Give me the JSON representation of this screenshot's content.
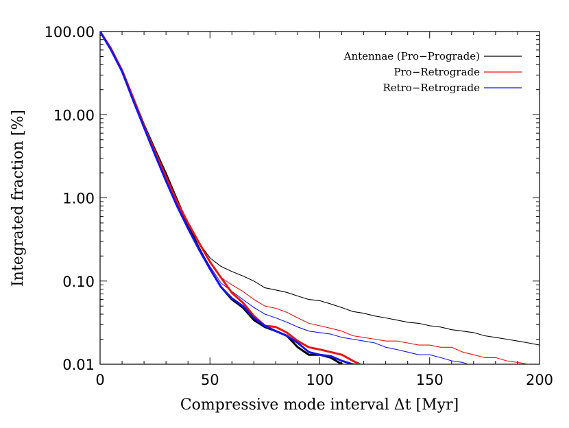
{
  "chart_data": {
    "type": "line",
    "xlabel": "Compressive mode interval Δt [Myr]",
    "ylabel": "Integrated fraction [%]",
    "xlim": [
      0,
      200
    ],
    "ylim": [
      0.01,
      100
    ],
    "yscale": "log",
    "x_ticks": [
      {
        "value": 0,
        "label": "0"
      },
      {
        "value": 50,
        "label": "50"
      },
      {
        "value": 100,
        "label": "100"
      },
      {
        "value": 150,
        "label": "150"
      },
      {
        "value": 200,
        "label": "200"
      }
    ],
    "y_ticks": [
      {
        "value": 100,
        "label": "100.00"
      },
      {
        "value": 10,
        "label": "10.00"
      },
      {
        "value": 1,
        "label": "1.00"
      },
      {
        "value": 0.1,
        "label": "0.10"
      },
      {
        "value": 0.01,
        "label": "0.01"
      }
    ],
    "legend_position": "top-right",
    "legend": [
      {
        "label": "Antennae (Pro−Prograde)",
        "color": "#000000"
      },
      {
        "label": "Pro−Retrograde",
        "color": "#ee1111"
      },
      {
        "label": "Retro−Retrograde",
        "color": "#1515ee"
      }
    ],
    "series": [
      {
        "color": "#000000",
        "style": "thin",
        "points": [
          [
            0,
            100
          ],
          [
            5,
            62
          ],
          [
            10,
            34
          ],
          [
            15,
            16
          ],
          [
            20,
            7.5
          ],
          [
            25,
            3.8
          ],
          [
            30,
            1.9
          ],
          [
            35,
            0.95
          ],
          [
            40,
            0.5
          ],
          [
            45,
            0.29
          ],
          [
            50,
            0.19
          ],
          [
            55,
            0.15
          ],
          [
            60,
            0.13
          ],
          [
            65,
            0.115
          ],
          [
            70,
            0.1
          ],
          [
            75,
            0.083
          ],
          [
            80,
            0.078
          ],
          [
            85,
            0.073
          ],
          [
            90,
            0.066
          ],
          [
            95,
            0.06
          ],
          [
            100,
            0.058
          ],
          [
            105,
            0.053
          ],
          [
            110,
            0.048
          ],
          [
            115,
            0.043
          ],
          [
            120,
            0.041
          ],
          [
            125,
            0.038
          ],
          [
            130,
            0.036
          ],
          [
            135,
            0.034
          ],
          [
            140,
            0.032
          ],
          [
            145,
            0.031
          ],
          [
            150,
            0.029
          ],
          [
            155,
            0.028
          ],
          [
            160,
            0.026
          ],
          [
            165,
            0.025
          ],
          [
            170,
            0.024
          ],
          [
            175,
            0.022
          ],
          [
            180,
            0.021
          ],
          [
            185,
            0.02
          ],
          [
            190,
            0.019
          ],
          [
            195,
            0.018
          ],
          [
            200,
            0.017
          ]
        ]
      },
      {
        "color": "#ee1111",
        "style": "thin",
        "points": [
          [
            0,
            100
          ],
          [
            5,
            62
          ],
          [
            10,
            34
          ],
          [
            15,
            16
          ],
          [
            20,
            7.5
          ],
          [
            25,
            3.7
          ],
          [
            30,
            1.85
          ],
          [
            35,
            0.92
          ],
          [
            40,
            0.5
          ],
          [
            45,
            0.29
          ],
          [
            50,
            0.17
          ],
          [
            55,
            0.11
          ],
          [
            60,
            0.09
          ],
          [
            65,
            0.075
          ],
          [
            70,
            0.06
          ],
          [
            75,
            0.05
          ],
          [
            80,
            0.047
          ],
          [
            85,
            0.042
          ],
          [
            90,
            0.036
          ],
          [
            95,
            0.031
          ],
          [
            100,
            0.029
          ],
          [
            105,
            0.027
          ],
          [
            110,
            0.025
          ],
          [
            115,
            0.022
          ],
          [
            120,
            0.021
          ],
          [
            125,
            0.02
          ],
          [
            130,
            0.019
          ],
          [
            135,
            0.019
          ],
          [
            140,
            0.018
          ],
          [
            145,
            0.017
          ],
          [
            150,
            0.017
          ],
          [
            155,
            0.016
          ],
          [
            160,
            0.016
          ],
          [
            165,
            0.014
          ],
          [
            170,
            0.013
          ],
          [
            175,
            0.012
          ],
          [
            180,
            0.012
          ],
          [
            185,
            0.011
          ],
          [
            190,
            0.0105
          ],
          [
            195,
            0.01
          ],
          [
            197,
            0.0095
          ]
        ]
      },
      {
        "color": "#1515ee",
        "style": "thin",
        "points": [
          [
            0,
            100
          ],
          [
            5,
            60
          ],
          [
            10,
            33
          ],
          [
            15,
            15
          ],
          [
            20,
            7
          ],
          [
            25,
            3.4
          ],
          [
            30,
            1.7
          ],
          [
            35,
            0.85
          ],
          [
            40,
            0.45
          ],
          [
            45,
            0.25
          ],
          [
            50,
            0.15
          ],
          [
            55,
            0.095
          ],
          [
            60,
            0.075
          ],
          [
            65,
            0.06
          ],
          [
            70,
            0.048
          ],
          [
            75,
            0.04
          ],
          [
            80,
            0.036
          ],
          [
            85,
            0.032
          ],
          [
            90,
            0.028
          ],
          [
            95,
            0.025
          ],
          [
            100,
            0.024
          ],
          [
            105,
            0.023
          ],
          [
            110,
            0.021
          ],
          [
            115,
            0.02
          ],
          [
            120,
            0.019
          ],
          [
            125,
            0.018
          ],
          [
            130,
            0.016
          ],
          [
            135,
            0.015
          ],
          [
            140,
            0.014
          ],
          [
            145,
            0.013
          ],
          [
            150,
            0.013
          ],
          [
            155,
            0.012
          ],
          [
            160,
            0.011
          ],
          [
            165,
            0.0105
          ],
          [
            170,
            0.0095
          ]
        ]
      },
      {
        "color": "#000000",
        "style": "thick",
        "points": [
          [
            0,
            100
          ],
          [
            5,
            62
          ],
          [
            10,
            34
          ],
          [
            15,
            16
          ],
          [
            20,
            7.5
          ],
          [
            25,
            3.8
          ],
          [
            30,
            1.95
          ],
          [
            35,
            0.95
          ],
          [
            40,
            0.47
          ],
          [
            45,
            0.25
          ],
          [
            50,
            0.14
          ],
          [
            55,
            0.085
          ],
          [
            60,
            0.06
          ],
          [
            65,
            0.048
          ],
          [
            70,
            0.034
          ],
          [
            75,
            0.028
          ],
          [
            80,
            0.025
          ],
          [
            85,
            0.022
          ],
          [
            90,
            0.016
          ],
          [
            95,
            0.013
          ],
          [
            100,
            0.013
          ],
          [
            105,
            0.012
          ],
          [
            110,
            0.01
          ],
          [
            112,
            0.0095
          ]
        ]
      },
      {
        "color": "#ee1111",
        "style": "thick",
        "points": [
          [
            0,
            100
          ],
          [
            5,
            62
          ],
          [
            10,
            34
          ],
          [
            15,
            16
          ],
          [
            20,
            7.3
          ],
          [
            25,
            3.6
          ],
          [
            30,
            1.8
          ],
          [
            35,
            0.9
          ],
          [
            40,
            0.5
          ],
          [
            45,
            0.29
          ],
          [
            50,
            0.17
          ],
          [
            55,
            0.11
          ],
          [
            60,
            0.072
          ],
          [
            65,
            0.055
          ],
          [
            70,
            0.038
          ],
          [
            75,
            0.029
          ],
          [
            80,
            0.028
          ],
          [
            85,
            0.024
          ],
          [
            90,
            0.019
          ],
          [
            95,
            0.016
          ],
          [
            100,
            0.015
          ],
          [
            105,
            0.014
          ],
          [
            110,
            0.013
          ],
          [
            115,
            0.011
          ],
          [
            120,
            0.0095
          ]
        ]
      },
      {
        "color": "#1515ee",
        "style": "thick",
        "points": [
          [
            0,
            100
          ],
          [
            5,
            60
          ],
          [
            10,
            33
          ],
          [
            15,
            15
          ],
          [
            20,
            7
          ],
          [
            25,
            3.3
          ],
          [
            30,
            1.6
          ],
          [
            35,
            0.8
          ],
          [
            40,
            0.43
          ],
          [
            45,
            0.24
          ],
          [
            50,
            0.14
          ],
          [
            55,
            0.085
          ],
          [
            60,
            0.062
          ],
          [
            65,
            0.05
          ],
          [
            70,
            0.036
          ],
          [
            75,
            0.029
          ],
          [
            80,
            0.025
          ],
          [
            85,
            0.022
          ],
          [
            90,
            0.018
          ],
          [
            95,
            0.014
          ],
          [
            100,
            0.013
          ],
          [
            105,
            0.0125
          ],
          [
            110,
            0.011
          ],
          [
            115,
            0.01
          ],
          [
            120,
            0.0095
          ]
        ]
      }
    ]
  }
}
